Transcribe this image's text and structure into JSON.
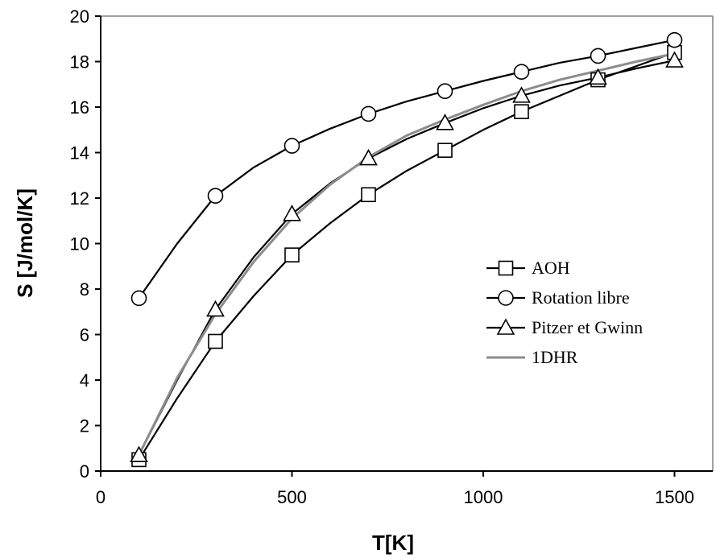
{
  "chart_data": {
    "type": "line",
    "title": "",
    "xlabel": "T[K]",
    "ylabel": "S [J/mol/K]",
    "xlim": [
      0,
      1600
    ],
    "ylim": [
      0,
      20
    ],
    "xticks": [
      0,
      500,
      1000,
      1500
    ],
    "yticks": [
      0,
      2,
      4,
      6,
      8,
      10,
      12,
      14,
      16,
      18,
      20
    ],
    "grid": false,
    "legend_position": "right-middle",
    "series": [
      {
        "name": "AOH",
        "marker": "square",
        "color": "#000000",
        "x": [
          100,
          200,
          300,
          400,
          500,
          600,
          700,
          800,
          900,
          1000,
          1100,
          1200,
          1300,
          1400,
          1500
        ],
        "y": [
          0.5,
          3.2,
          5.7,
          7.7,
          9.5,
          10.9,
          12.15,
          13.2,
          14.1,
          15.0,
          15.8,
          16.5,
          17.2,
          17.8,
          18.4
        ],
        "marker_x": [
          100,
          300,
          500,
          700,
          900,
          1100,
          1300,
          1500
        ],
        "marker_y": [
          0.5,
          5.7,
          9.5,
          12.15,
          14.1,
          15.8,
          17.2,
          18.4
        ]
      },
      {
        "name": "Rotation libre",
        "marker": "circle",
        "color": "#000000",
        "x": [
          100,
          200,
          300,
          400,
          500,
          600,
          700,
          800,
          900,
          1000,
          1100,
          1200,
          1300,
          1400,
          1500
        ],
        "y": [
          7.6,
          10.0,
          12.1,
          13.35,
          14.3,
          15.05,
          15.7,
          16.25,
          16.7,
          17.15,
          17.55,
          17.95,
          18.25,
          18.6,
          18.95
        ],
        "marker_x": [
          100,
          300,
          500,
          700,
          900,
          1100,
          1300,
          1500
        ],
        "marker_y": [
          7.6,
          12.1,
          14.3,
          15.7,
          16.7,
          17.55,
          18.25,
          18.95
        ]
      },
      {
        "name": "Pitzer et Gwinn",
        "marker": "triangle",
        "color": "#000000",
        "x": [
          100,
          200,
          300,
          400,
          500,
          600,
          700,
          800,
          900,
          1000,
          1100,
          1200,
          1300,
          1400,
          1500
        ],
        "y": [
          0.7,
          4.0,
          7.1,
          9.4,
          11.3,
          12.65,
          13.75,
          14.6,
          15.3,
          15.95,
          16.5,
          16.95,
          17.3,
          17.7,
          18.05
        ],
        "marker_x": [
          100,
          300,
          500,
          700,
          900,
          1100,
          1300,
          1500
        ],
        "marker_y": [
          0.7,
          7.1,
          11.3,
          13.75,
          15.3,
          16.5,
          17.3,
          18.05
        ]
      },
      {
        "name": "1DHR",
        "marker": "none",
        "color": "#8c8c8c",
        "x": [
          100,
          200,
          300,
          400,
          500,
          600,
          700,
          800,
          900,
          1000,
          1100,
          1200,
          1300,
          1400,
          1500
        ],
        "y": [
          0.7,
          4.1,
          6.9,
          9.2,
          11.1,
          12.6,
          13.8,
          14.75,
          15.45,
          16.1,
          16.7,
          17.2,
          17.6,
          18.0,
          18.35
        ],
        "marker_x": [],
        "marker_y": []
      }
    ]
  }
}
